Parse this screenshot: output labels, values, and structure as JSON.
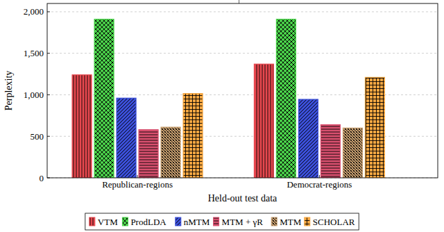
{
  "chart_data": {
    "type": "bar",
    "x_label": "Held-out test data",
    "y_label": "Perplexity",
    "categories": [
      "Republican-regions",
      "Democrat-regions"
    ],
    "series": [
      {
        "name": "VTM",
        "color": "#e8484f",
        "values": [
          1240,
          1370
        ]
      },
      {
        "name": "ProdLDA",
        "color": "#4cd64c",
        "values": [
          1910,
          1910
        ]
      },
      {
        "name": "nMTM",
        "color": "#3b4fd8",
        "values": [
          960,
          945
        ]
      },
      {
        "name": "MTM + γR",
        "color": "#d9506f",
        "values": [
          580,
          640
        ]
      },
      {
        "name": "MTM",
        "color": "#c9a070",
        "values": [
          610,
          600
        ]
      },
      {
        "name": "SCHOLAR",
        "color": "#f5a742",
        "values": [
          1015,
          1210
        ]
      }
    ],
    "ylim": [
      0,
      2100
    ],
    "yticks": [
      0,
      500,
      {
        "value": 1000,
        "label": "1,000"
      },
      {
        "value": 1500,
        "label": "1,500"
      },
      {
        "value": 2000,
        "label": "2,000"
      }
    ],
    "grid": true,
    "legend": "bottom"
  }
}
